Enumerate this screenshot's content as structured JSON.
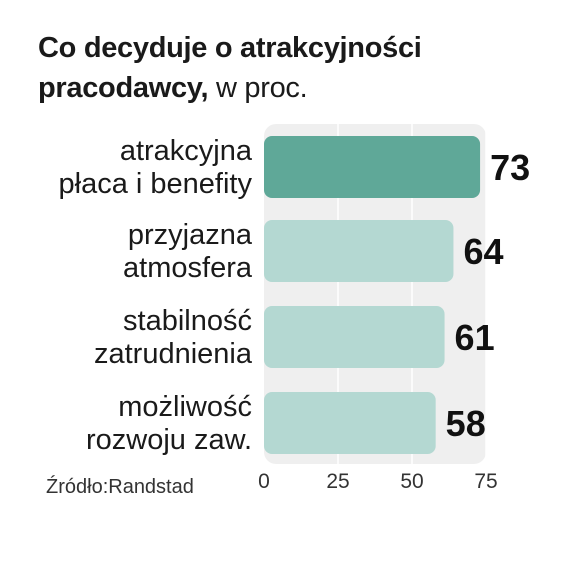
{
  "title_bold": "Co decyduje o atrakcyjności pracodawcy,",
  "title_unit": " w proc.",
  "source": "Źródło:Randstad",
  "colors": {
    "highlight": "#5fa898",
    "bar": "#b4d8d2",
    "plot_bg": "#efefef",
    "grid": "#ffffff"
  },
  "chart_data": {
    "type": "bar",
    "orientation": "horizontal",
    "categories": [
      "atrakcyjna płaca i benefity",
      "przyjazna atmosfera",
      "stabilność zatrudnienia",
      "możliwość rozwoju zaw."
    ],
    "category_lines": [
      [
        "atrakcyjna",
        "płaca i benefity"
      ],
      [
        "przyjazna",
        "atmosfera"
      ],
      [
        "stabilność",
        "zatrudnienia"
      ],
      [
        "możliwość",
        "rozwoju zaw."
      ]
    ],
    "values": [
      73,
      64,
      61,
      58
    ],
    "value_labels": [
      "73",
      "64",
      "61",
      "58"
    ],
    "xlim": [
      0,
      75
    ],
    "xticks": [
      0,
      25,
      50,
      75
    ],
    "xtick_labels": [
      "0",
      "25",
      "50",
      "75"
    ],
    "grid": true,
    "highlighted_category": "atrakcyjna płaca i benefity"
  }
}
